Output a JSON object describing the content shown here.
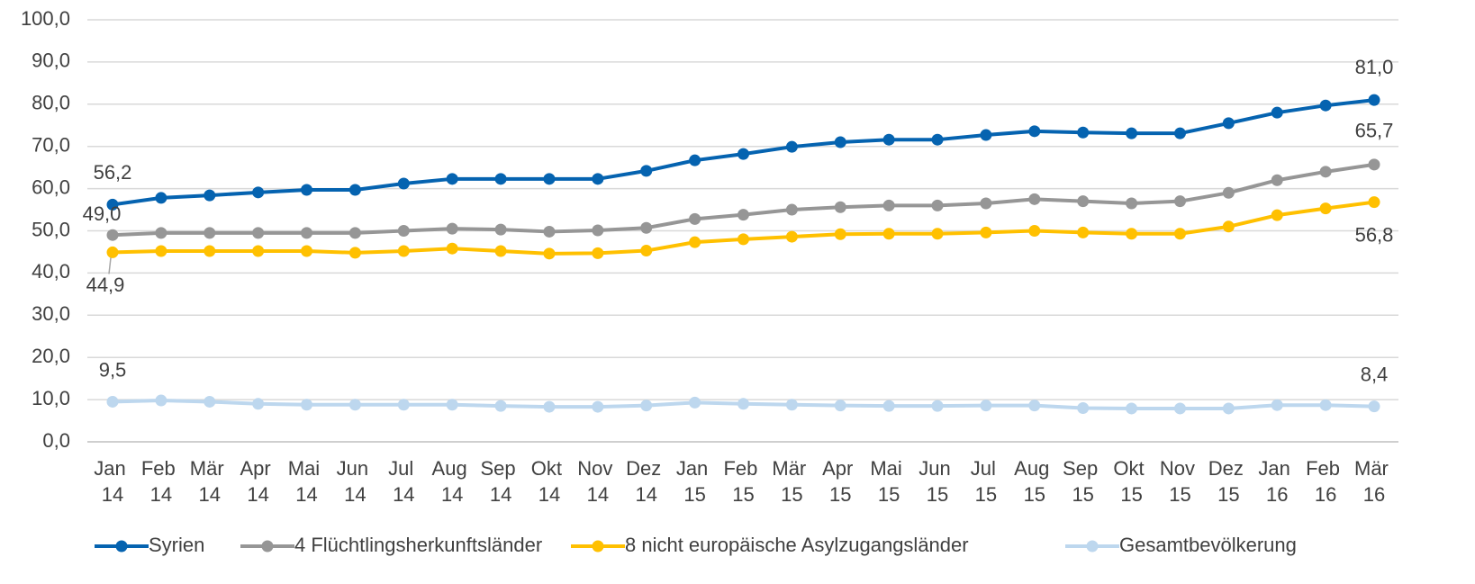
{
  "chart_data": {
    "type": "line",
    "categories": [
      "Jan 14",
      "Feb 14",
      "Mär 14",
      "Apr 14",
      "Mai 14",
      "Jun 14",
      "Jul 14",
      "Aug 14",
      "Sep 14",
      "Okt 14",
      "Nov 14",
      "Dez 14",
      "Jan 15",
      "Feb 15",
      "Mär 15",
      "Apr 15",
      "Mai 15",
      "Jun 15",
      "Jul 15",
      "Aug 15",
      "Sep 15",
      "Okt 15",
      "Nov 15",
      "Dez 15",
      "Jan 16",
      "Feb 16",
      "Mär 16"
    ],
    "series": [
      {
        "name": "Syrien",
        "color": "#0563b0",
        "values": [
          56.2,
          57.8,
          58.4,
          59.1,
          59.7,
          59.7,
          61.2,
          62.3,
          62.3,
          62.3,
          62.3,
          64.2,
          66.7,
          68.2,
          69.9,
          71.0,
          71.6,
          71.6,
          72.7,
          73.6,
          73.3,
          73.1,
          73.1,
          75.5,
          78.0,
          79.7,
          81.0
        ],
        "value_labels": [
          "56,2",
          null,
          null,
          null,
          null,
          null,
          null,
          null,
          null,
          null,
          null,
          null,
          null,
          null,
          null,
          null,
          null,
          null,
          null,
          null,
          null,
          null,
          null,
          null,
          null,
          null,
          "81,0"
        ]
      },
      {
        "name": "4 Flüchtlingsherkunftsländer",
        "color": "#969696",
        "values": [
          49.0,
          49.5,
          49.5,
          49.5,
          49.5,
          49.5,
          50.0,
          50.5,
          50.3,
          49.8,
          50.1,
          50.7,
          52.8,
          53.8,
          55.0,
          55.6,
          56.0,
          56.0,
          56.5,
          57.5,
          57.0,
          56.5,
          57.0,
          59.0,
          62.0,
          64.0,
          65.7
        ],
        "value_labels": [
          "49,0",
          null,
          null,
          null,
          null,
          null,
          null,
          null,
          null,
          null,
          null,
          null,
          null,
          null,
          null,
          null,
          null,
          null,
          null,
          null,
          null,
          null,
          null,
          null,
          null,
          null,
          "65,7"
        ]
      },
      {
        "name": "8 nicht europäische Asylzugangsländer",
        "color": "#ffc000",
        "values": [
          44.9,
          45.2,
          45.2,
          45.2,
          45.2,
          44.8,
          45.2,
          45.8,
          45.2,
          44.6,
          44.7,
          45.3,
          47.3,
          48.0,
          48.6,
          49.2,
          49.3,
          49.3,
          49.6,
          50.0,
          49.6,
          49.3,
          49.3,
          51.0,
          53.7,
          55.3,
          56.8
        ],
        "value_labels": [
          "44,9",
          null,
          null,
          null,
          null,
          null,
          null,
          null,
          null,
          null,
          null,
          null,
          null,
          null,
          null,
          null,
          null,
          null,
          null,
          null,
          null,
          null,
          null,
          null,
          null,
          null,
          "56,8"
        ]
      },
      {
        "name": "Gesamtbevölkerung",
        "color": "#bdd7ee",
        "values": [
          9.5,
          9.8,
          9.5,
          9.0,
          8.8,
          8.8,
          8.8,
          8.8,
          8.5,
          8.3,
          8.3,
          8.6,
          9.3,
          9.0,
          8.8,
          8.6,
          8.5,
          8.5,
          8.6,
          8.6,
          8.0,
          7.9,
          7.9,
          7.9,
          8.7,
          8.7,
          8.4
        ],
        "value_labels": [
          "9,5",
          null,
          null,
          null,
          null,
          null,
          null,
          null,
          null,
          null,
          null,
          null,
          null,
          null,
          null,
          null,
          null,
          null,
          null,
          null,
          null,
          null,
          null,
          null,
          null,
          null,
          "8,4"
        ]
      }
    ],
    "ylim": [
      0,
      100
    ],
    "yticks": [
      {
        "value": 0,
        "label": "0,0"
      },
      {
        "value": 10,
        "label": "10,0"
      },
      {
        "value": 20,
        "label": "20,0"
      },
      {
        "value": 30,
        "label": "30,0"
      },
      {
        "value": 40,
        "label": "40,0"
      },
      {
        "value": 50,
        "label": "50,0"
      },
      {
        "value": 60,
        "label": "60,0"
      },
      {
        "value": 70,
        "label": "70,0"
      },
      {
        "value": 80,
        "label": "80,0"
      },
      {
        "value": 90,
        "label": "90,0"
      },
      {
        "value": 100,
        "label": "100,0"
      }
    ],
    "grid": true,
    "legend": "bottom"
  }
}
